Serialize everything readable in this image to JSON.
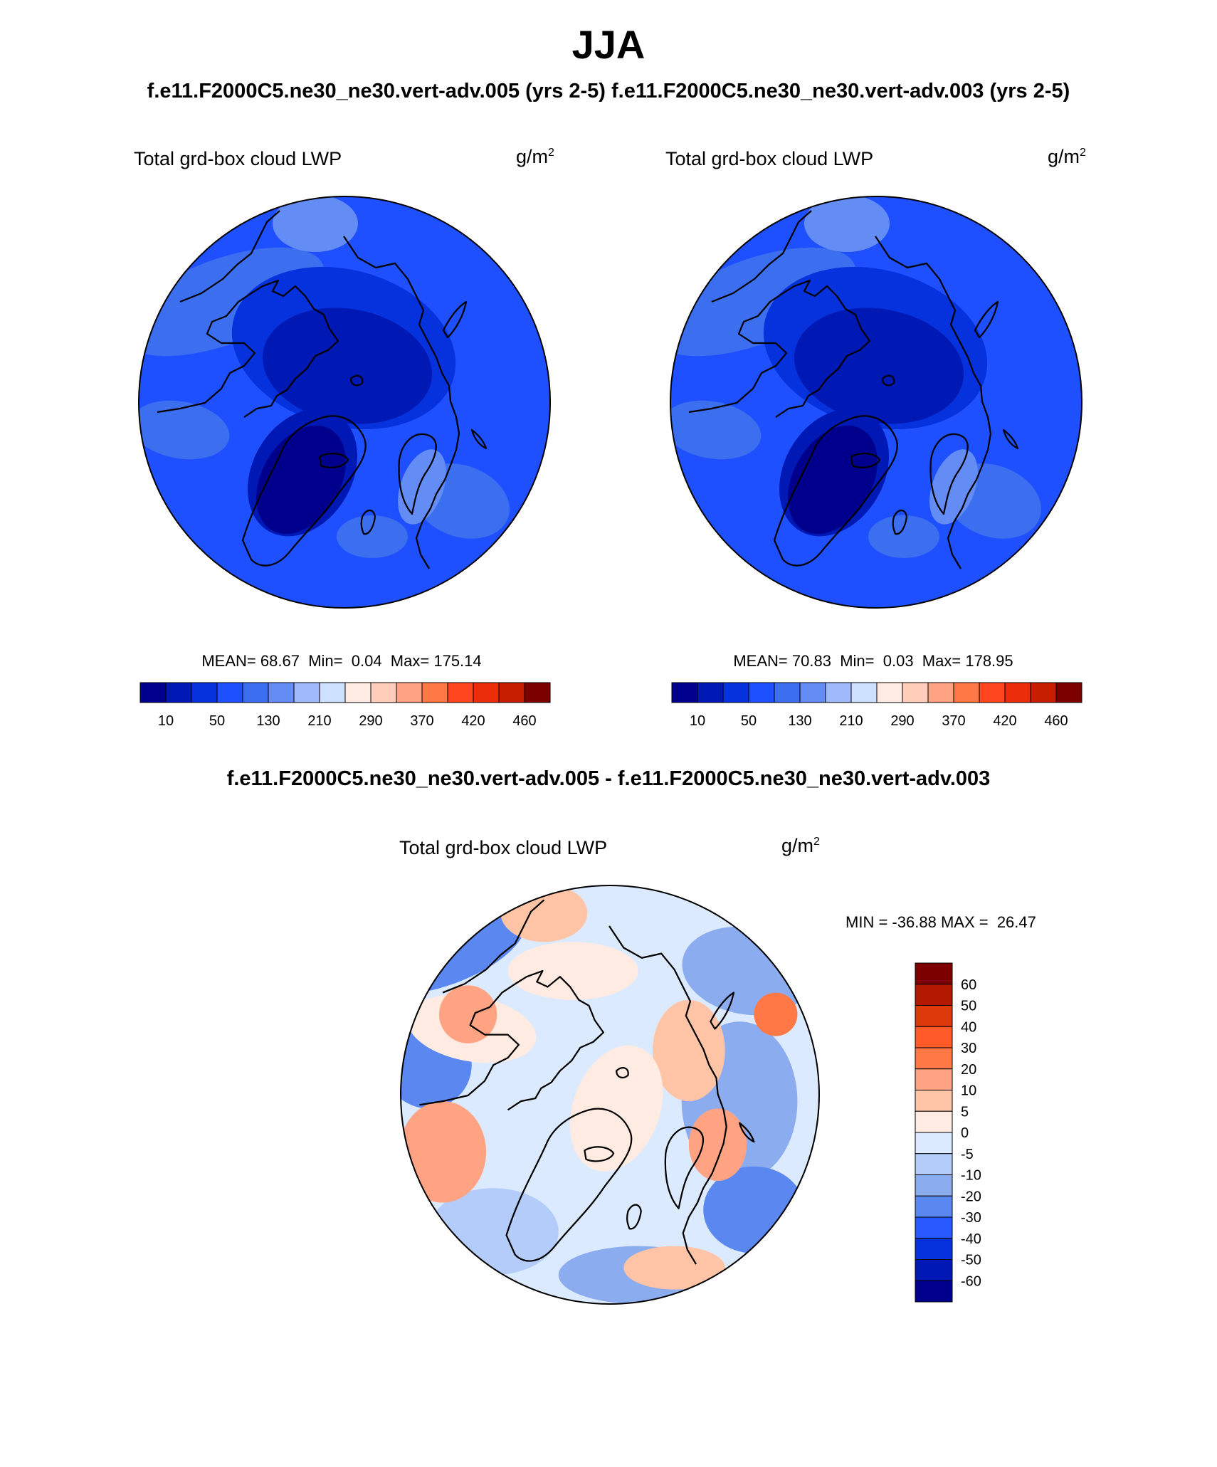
{
  "figure": {
    "season": "JJA",
    "runs_title": "f.e11.F2000C5.ne30_ne30.vert-adv.005 (yrs 2-5)  f.e11.F2000C5.ne30_ne30.vert-adv.003 (yrs 2-5)",
    "diff_title": "f.e11.F2000C5.ne30_ne30.vert-adv.005 - f.e11.F2000C5.ne30_ne30.vert-adv.003"
  },
  "chart_data": [
    {
      "type": "heatmap",
      "projection": "north polar stereographic",
      "title": "Total grd-box cloud LWP",
      "units": "g/m",
      "units_exp": "2",
      "stats": {
        "mean_label": "MEAN=",
        "mean": "68.67",
        "min_label": "Min=",
        "min": "0.04",
        "max_label": "Max=",
        "max": "175.14"
      },
      "colorbar": {
        "orientation": "horizontal",
        "levels": [
          10,
          30,
          50,
          80,
          130,
          170,
          210,
          250,
          290,
          330,
          370,
          400,
          420,
          440,
          460
        ],
        "tick_labels": [
          "10",
          "50",
          "130",
          "210",
          "290",
          "370",
          "420",
          "460"
        ],
        "colors": [
          "#00008c",
          "#0019b4",
          "#0532dc",
          "#1e50ff",
          "#3c6ef0",
          "#648cf5",
          "#a0b9fa",
          "#cde1ff",
          "#ffebe1",
          "#ffcdb9",
          "#ffa382",
          "#ff7846",
          "#ff461e",
          "#eb2d0a",
          "#c81e00",
          "#7d0000"
        ]
      }
    },
    {
      "type": "heatmap",
      "projection": "north polar stereographic",
      "title": "Total grd-box cloud LWP",
      "units": "g/m",
      "units_exp": "2",
      "stats": {
        "mean_label": "MEAN=",
        "mean": "70.83",
        "min_label": "Min=",
        "min": "0.03",
        "max_label": "Max=",
        "max": "178.95"
      },
      "colorbar": {
        "orientation": "horizontal",
        "levels": [
          10,
          30,
          50,
          80,
          130,
          170,
          210,
          250,
          290,
          330,
          370,
          400,
          420,
          440,
          460
        ],
        "tick_labels": [
          "10",
          "50",
          "130",
          "210",
          "290",
          "370",
          "420",
          "460"
        ],
        "colors": [
          "#00008c",
          "#0019b4",
          "#0532dc",
          "#1e50ff",
          "#3c6ef0",
          "#648cf5",
          "#a0b9fa",
          "#cde1ff",
          "#ffebe1",
          "#ffcdb9",
          "#ffa382",
          "#ff7846",
          "#ff461e",
          "#eb2d0a",
          "#c81e00",
          "#7d0000"
        ]
      }
    },
    {
      "type": "heatmap",
      "projection": "north polar stereographic",
      "title": "Total grd-box cloud LWP",
      "units": "g/m",
      "units_exp": "2",
      "stats": {
        "min_label": "MIN =",
        "min": "-36.88",
        "max_label": "MAX =",
        "max": "26.47"
      },
      "colorbar": {
        "orientation": "vertical",
        "tick_labels": [
          "60",
          "50",
          "40",
          "30",
          "20",
          "10",
          "5",
          "0",
          "-5",
          "-10",
          "-20",
          "-30",
          "-40",
          "-50",
          "-60"
        ],
        "colors": [
          "#7d0000",
          "#b31800",
          "#dc3a0a",
          "#ff5a28",
          "#ff7846",
          "#ffa382",
          "#ffc4a6",
          "#ffebe1",
          "#dceaff",
          "#b4ccfa",
          "#8cacf0",
          "#5a87f0",
          "#2858ff",
          "#0532dc",
          "#0019b4",
          "#00008c"
        ]
      }
    }
  ]
}
